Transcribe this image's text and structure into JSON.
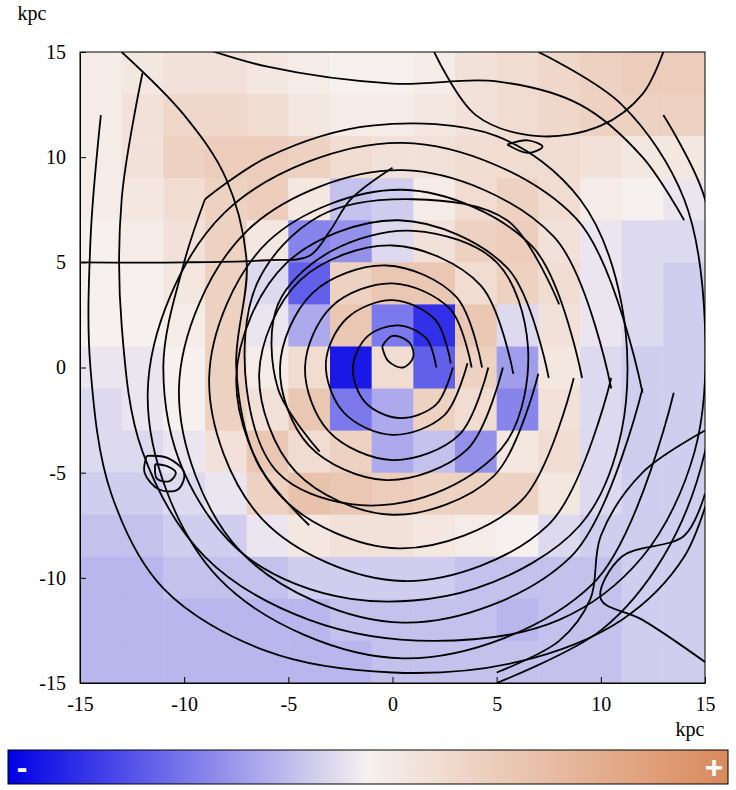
{
  "chart_data": {
    "type": "heatmap",
    "x_label": "kpc",
    "y_label": "kpc",
    "xlim": [
      -15,
      15
    ],
    "ylim": [
      -15,
      15
    ],
    "xticks": [
      -15,
      -10,
      -5,
      0,
      5,
      10,
      15
    ],
    "yticks": [
      -15,
      -10,
      -5,
      0,
      5,
      10,
      15
    ],
    "heatmap": {
      "x": [
        -14,
        -12,
        -10,
        -8,
        -6,
        -4,
        -2,
        0,
        2,
        4,
        6,
        8,
        10,
        12,
        14
      ],
      "y": [
        14,
        12,
        10,
        8,
        6,
        4,
        2,
        0,
        -2,
        -4,
        -6,
        -8,
        -10,
        -12,
        -14
      ],
      "values": [
        [
          0.05,
          0.1,
          0.15,
          0.15,
          0.1,
          0.05,
          0,
          0,
          0.05,
          0.15,
          0.2,
          0.25,
          0.3,
          0.35,
          0.35
        ],
        [
          0.05,
          0.15,
          0.25,
          0.25,
          0.2,
          0.1,
          0.05,
          0.05,
          0.1,
          0.15,
          0.2,
          0.25,
          0.3,
          0.3,
          0.3
        ],
        [
          0.05,
          0.15,
          0.3,
          0.35,
          0.35,
          0.3,
          0.2,
          0.15,
          0.15,
          0.2,
          0.2,
          0.2,
          0.15,
          0.1,
          0.1
        ],
        [
          0.05,
          0.1,
          0.2,
          0.3,
          0.35,
          0.1,
          -0.2,
          -0.15,
          0.05,
          0.2,
          0.3,
          0.2,
          0.05,
          0,
          -0.05
        ],
        [
          0,
          0.05,
          0.15,
          0.3,
          0.1,
          -0.45,
          -0.4,
          -0.1,
          0.15,
          0.3,
          0.35,
          0.15,
          -0.05,
          -0.1,
          -0.1
        ],
        [
          0,
          0,
          0.1,
          0.3,
          -0.1,
          -0.6,
          0.3,
          0.4,
          0.4,
          0.2,
          0.3,
          0.2,
          -0.05,
          -0.1,
          -0.15
        ],
        [
          0,
          0,
          0.05,
          0.3,
          -0.05,
          -0.3,
          0.4,
          -0.5,
          -0.8,
          0.4,
          -0.1,
          0.15,
          -0.05,
          -0.1,
          -0.15
        ],
        [
          -0.05,
          -0.05,
          0,
          0.3,
          0.05,
          0.2,
          -0.9,
          0.2,
          -0.6,
          0.3,
          -0.35,
          0.1,
          -0.1,
          -0.15,
          -0.15
        ],
        [
          -0.1,
          -0.05,
          0,
          0.3,
          0.15,
          0.4,
          -0.5,
          -0.3,
          0.3,
          0.2,
          -0.45,
          0.15,
          -0.1,
          -0.15,
          -0.15
        ],
        [
          -0.1,
          -0.1,
          -0.05,
          0.15,
          0.4,
          0.2,
          0.3,
          -0.3,
          -0.2,
          -0.4,
          0.1,
          0.2,
          -0.1,
          -0.15,
          -0.15
        ],
        [
          -0.15,
          -0.15,
          -0.1,
          -0.05,
          0.3,
          0.45,
          0.4,
          0.35,
          0.3,
          0.3,
          0.3,
          0.1,
          -0.1,
          -0.15,
          -0.15
        ],
        [
          -0.2,
          -0.2,
          -0.15,
          -0.15,
          -0.05,
          0.1,
          0.15,
          0.15,
          0.1,
          0.05,
          0,
          -0.1,
          -0.15,
          -0.15,
          -0.15
        ],
        [
          -0.25,
          -0.25,
          -0.2,
          -0.2,
          -0.2,
          -0.15,
          -0.15,
          -0.15,
          -0.15,
          -0.2,
          -0.2,
          -0.2,
          -0.2,
          -0.15,
          -0.15
        ],
        [
          -0.25,
          -0.25,
          -0.25,
          -0.25,
          -0.25,
          -0.25,
          -0.2,
          -0.2,
          -0.2,
          -0.2,
          -0.25,
          -0.2,
          -0.2,
          -0.15,
          -0.15
        ],
        [
          -0.25,
          -0.25,
          -0.25,
          -0.25,
          -0.25,
          -0.25,
          -0.25,
          -0.2,
          -0.2,
          -0.2,
          -0.2,
          -0.2,
          -0.2,
          -0.15,
          -0.15
        ]
      ]
    },
    "colorbar": {
      "range": [
        -1,
        1
      ],
      "ticks": [
        {
          "value": -1,
          "label": "-"
        },
        {
          "value": 1,
          "label": "+"
        }
      ]
    },
    "streamlines": [
      {
        "x": [
          2.1,
          1.65,
          0.3,
          -1.19,
          -1.9,
          -1.33,
          0.3,
          2.08,
          2.9
        ],
        "y": [
          0,
          1.35,
          2.0,
          1.49,
          0,
          -1.63,
          -2.4,
          -1.78,
          0
        ]
      },
      {
        "x": [
          2.8,
          2.06,
          0,
          -2.2,
          -3.2,
          -2.34,
          0,
          2.48,
          3.6
        ],
        "y": [
          0.2,
          2.26,
          3.2,
          2.33,
          0.2,
          -2.14,
          -3.2,
          -2.28,
          0.2
        ]
      },
      {
        "x": [
          3.8,
          2.77,
          0,
          -2.91,
          -4.2,
          -3.05,
          0,
          3.2,
          4.6
        ],
        "y": [
          0,
          2.77,
          4.0,
          2.91,
          0,
          -3.05,
          -4.4,
          -3.2,
          0
        ]
      },
      {
        "x": [
          4.3,
          3.06,
          -0.3,
          -3.84,
          -5.4,
          -4.01,
          -0.3,
          3.59,
          5.3
        ],
        "y": [
          0,
          3.36,
          4.85,
          3.54,
          0,
          -3.71,
          -5.35,
          -3.89,
          0
        ]
      },
      {
        "x": [
          5.8,
          4.22,
          0,
          -4.44,
          -6.4,
          -4.65,
          0,
          4.86,
          7
        ],
        "y": [
          -0.3,
          3.92,
          5.8,
          4.14,
          -0.3,
          -4.95,
          -7.0,
          -5.16,
          -0.3
        ]
      },
      {
        "x": [
          7.5,
          5.52,
          0.3,
          -5.13,
          -7.5,
          -5.34,
          0.3,
          6.16,
          8.7
        ],
        "y": [
          -0.5,
          4.72,
          7.0,
          4.93,
          -0.5,
          -6.14,
          -8.6,
          -6.36,
          -0.5
        ]
      },
      {
        "x": [
          9.1,
          6.73,
          0.5,
          -5.98,
          -8.8,
          -6.23,
          0.5,
          7.48,
          10.5
        ],
        "y": [
          -0.5,
          5.73,
          8.45,
          5.98,
          -0.5,
          -7.23,
          -10.15,
          -7.48,
          -0.5
        ]
      },
      {
        "x": [
          10.5,
          7.73,
          0.5,
          -6.98,
          -10.25,
          -7.27,
          0.5,
          8.53,
          12
        ],
        "y": [
          -1,
          6.23,
          9.38,
          6.5,
          -1,
          -8.77,
          -12.13,
          -9.03,
          -1
        ]
      },
      {
        "x": [
          12,
          8.8,
          0.5,
          -8.06,
          -11.75,
          -8.33,
          0.5,
          9.6,
          13.5
        ],
        "y": [
          -1.2,
          7.1,
          10.68,
          7.36,
          -1.2,
          -10.03,
          -13.83,
          -10.3,
          -1.2
        ]
      },
      {
        "x": [
          -14,
          -14.5,
          -14.5,
          -13.5,
          -11,
          -6,
          0,
          6,
          11,
          14,
          15.5
        ],
        "y": [
          12,
          6,
          0,
          -6,
          -10.5,
          -13.5,
          -14.5,
          -14,
          -12,
          -9,
          -5
        ]
      },
      {
        "x": [
          -12,
          -13,
          -13,
          -12,
          -9,
          -4,
          2,
          8,
          12,
          14.5,
          15,
          14,
          11,
          7
        ],
        "y": [
          14,
          8,
          2,
          -4,
          -9,
          -12,
          -13,
          -12,
          -9,
          -4,
          2,
          8,
          12.5,
          15
        ]
      },
      {
        "x": [
          -10,
          -6,
          0,
          5,
          9,
          12,
          14
        ],
        "y": [
          15.5,
          14.3,
          13.5,
          13.6,
          12.5,
          10,
          7
        ]
      },
      {
        "x": [
          -13,
          -10,
          -8,
          -7,
          -7.5,
          -6.5,
          -4
        ],
        "y": [
          15,
          12,
          9,
          5,
          0,
          -4.5,
          -7.5
        ]
      },
      {
        "x": [
          15,
          12,
          10,
          9.5,
          8,
          5
        ],
        "y": [
          -3,
          -5,
          -8,
          -11,
          -13,
          -14.5
        ]
      },
      {
        "x": [
          15,
          12,
          10,
          11,
          14,
          15
        ],
        "y": [
          -14,
          -12,
          -11,
          -9,
          -8,
          -6
        ]
      },
      {
        "x": [
          -11.8,
          -10.8,
          -10,
          -10.3,
          -11.2,
          -11.9,
          -11.8
        ],
        "y": [
          -4.2,
          -4.3,
          -5,
          -5.8,
          -5.8,
          -5,
          -4.2
        ]
      },
      {
        "x": [
          -11.4,
          -10.8,
          -10.4,
          -10.7,
          -11.3,
          -11.4
        ],
        "y": [
          -4.6,
          -4.7,
          -5,
          -5.4,
          -5.3,
          -4.6
        ]
      },
      {
        "x": [
          -15,
          -10,
          -6,
          -4,
          -3,
          -2,
          0
        ],
        "y": [
          5,
          5,
          5.1,
          5.3,
          6.5,
          8,
          9.5
        ]
      },
      {
        "x": [
          2,
          4,
          7,
          10,
          12,
          13
        ],
        "y": [
          15,
          12,
          11,
          11.5,
          13,
          15
        ]
      },
      {
        "x": [
          -0.5,
          0,
          0.8,
          1,
          0.5,
          -0.2,
          -0.5
        ],
        "y": [
          1,
          1.5,
          1.2,
          0.5,
          0,
          0.3,
          1
        ]
      },
      {
        "x": [
          13,
          15,
          15.5,
          15,
          13,
          10,
          5
        ],
        "y": [
          12,
          8,
          2,
          -4,
          -9,
          -12.5,
          -15
        ]
      },
      {
        "x": [
          5.5,
          6.5,
          7.2,
          6.5,
          5.5
        ],
        "y": [
          10.6,
          10.8,
          10.5,
          10.2,
          10.6
        ]
      },
      {
        "x": [
          -3.5,
          -5.5,
          -5.5,
          -3,
          1,
          5,
          6.5,
          5.5,
          2,
          -2,
          -5.5,
          -7,
          -6.5,
          -3.5,
          1,
          5.5,
          8
        ],
        "y": [
          -4,
          -1,
          3,
          5.5,
          6.5,
          5,
          1,
          -3.5,
          -6,
          -6.5,
          -5,
          -1,
          4,
          7.2,
          8,
          7,
          3
        ]
      },
      {
        "x": [
          -9,
          -6,
          -1,
          5,
          9,
          11,
          11,
          9,
          4,
          -2,
          -7,
          -10,
          -11,
          -10,
          -9
        ],
        "y": [
          8,
          10,
          11.5,
          11,
          8,
          3,
          -3,
          -7.5,
          -10.5,
          -11,
          -9,
          -5,
          0,
          5,
          8
        ]
      }
    ]
  }
}
